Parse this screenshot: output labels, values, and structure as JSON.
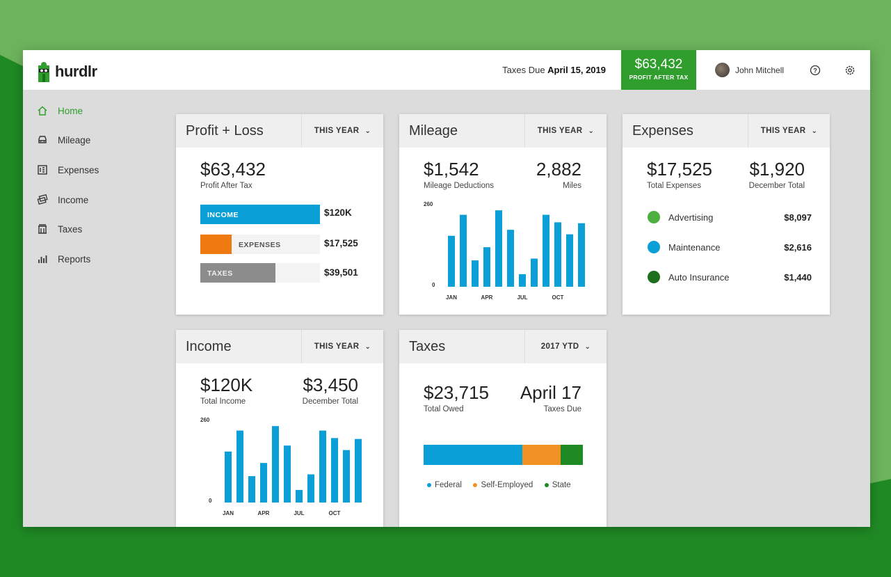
{
  "brand": {
    "name": "hurdlr"
  },
  "header": {
    "taxes_due_prefix": "Taxes Due",
    "taxes_due_date": "April 15, 2019",
    "profit_amount": "$63,432",
    "profit_label": "PROFIT AFTER TAX",
    "user_name": "John Mitchell"
  },
  "sidebar": {
    "items": [
      {
        "label": "Home",
        "icon": "home-icon"
      },
      {
        "label": "Mileage",
        "icon": "car-icon"
      },
      {
        "label": "Expenses",
        "icon": "receipt-icon"
      },
      {
        "label": "Income",
        "icon": "money-icon"
      },
      {
        "label": "Taxes",
        "icon": "building-icon"
      },
      {
        "label": "Reports",
        "icon": "bar-chart-icon"
      }
    ]
  },
  "profit_loss": {
    "title": "Profit + Loss",
    "period": "THIS YEAR",
    "amount": "$63,432",
    "amount_label": "Profit After Tax",
    "bars": [
      {
        "label": "INCOME",
        "value": "$120K",
        "fraction": 1.0,
        "color": "#0a9fd6"
      },
      {
        "label": "EXPENSES",
        "value": "$17,525",
        "fraction": 0.26,
        "color": "#f07a12"
      },
      {
        "label": "TAXES",
        "value": "$39,501",
        "fraction": 0.63,
        "color": "#8c8c8c"
      }
    ]
  },
  "mileage": {
    "title": "Mileage",
    "period": "THIS YEAR",
    "deduction_amount": "$1,542",
    "deduction_label": "Mileage Deductions",
    "miles_amount": "2,882",
    "miles_label": "Miles"
  },
  "expenses": {
    "title": "Expenses",
    "period": "THIS YEAR",
    "total_amount": "$17,525",
    "total_label": "Total Expenses",
    "december_amount": "$1,920",
    "december_label": "December Total",
    "items": [
      {
        "label": "Advertising",
        "value": "$8,097",
        "color": "#4caf3f"
      },
      {
        "label": "Maintenance",
        "value": "$2,616",
        "color": "#0a9fd6"
      },
      {
        "label": "Auto Insurance",
        "value": "$1,440",
        "color": "#1d6f1d"
      }
    ]
  },
  "income": {
    "title": "Income",
    "period": "THIS YEAR",
    "total_amount": "$120K",
    "total_label": "Total Income",
    "december_amount": "$3,450",
    "december_label": "December Total"
  },
  "taxes": {
    "title": "Taxes",
    "period": "2017 YTD",
    "owed_amount": "$23,715",
    "owed_label": "Total Owed",
    "due_date": "April 17",
    "due_label": "Taxes Due",
    "segments": [
      {
        "label": "Federal",
        "fraction": 0.62,
        "color": "#0a9fd6"
      },
      {
        "label": "Self-Employed",
        "fraction": 0.24,
        "color": "#f39224"
      },
      {
        "label": "State",
        "fraction": 0.14,
        "color": "#1f8a24"
      }
    ]
  },
  "chart_data": [
    {
      "type": "bar",
      "chart": "mileage",
      "categories": [
        "JAN",
        "",
        "",
        "APR",
        "",
        "",
        "JUL",
        "",
        "",
        "OCT",
        "",
        ""
      ],
      "values": [
        170,
        240,
        88,
        132,
        255,
        190,
        42,
        94,
        240,
        215,
        175,
        212
      ],
      "ylim": [
        0,
        260
      ],
      "ytick_labels": [
        "0",
        "260"
      ],
      "color": "#0a9fd6"
    },
    {
      "type": "bar",
      "chart": "income",
      "categories": [
        "JAN",
        "",
        "",
        "APR",
        "",
        "",
        "JUL",
        "",
        "",
        "OCT",
        "",
        ""
      ],
      "values": [
        170,
        240,
        88,
        132,
        255,
        190,
        42,
        94,
        240,
        215,
        175,
        212
      ],
      "ylim": [
        0,
        260
      ],
      "ytick_labels": [
        "0",
        "260"
      ],
      "color": "#0a9fd6"
    }
  ]
}
